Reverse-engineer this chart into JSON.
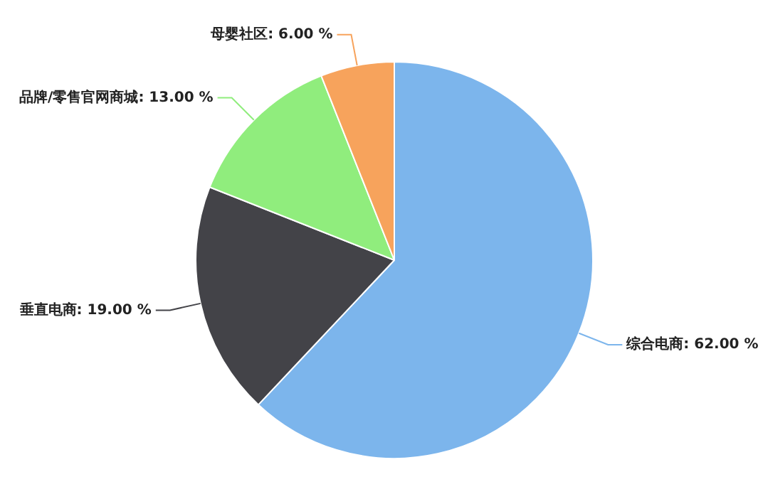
{
  "chart_data": {
    "type": "pie",
    "categories": [
      "综合电商",
      "垂直电商",
      "品牌/零售官网商城",
      "母婴社区"
    ],
    "values": [
      62,
      19,
      13,
      6
    ],
    "value_labels": [
      "62.00 %",
      "19.00 %",
      "13.00 %",
      "6.00 %"
    ],
    "colors": [
      "#7cb5ec",
      "#434348",
      "#90ed7d",
      "#f7a35c"
    ],
    "legend": false
  }
}
